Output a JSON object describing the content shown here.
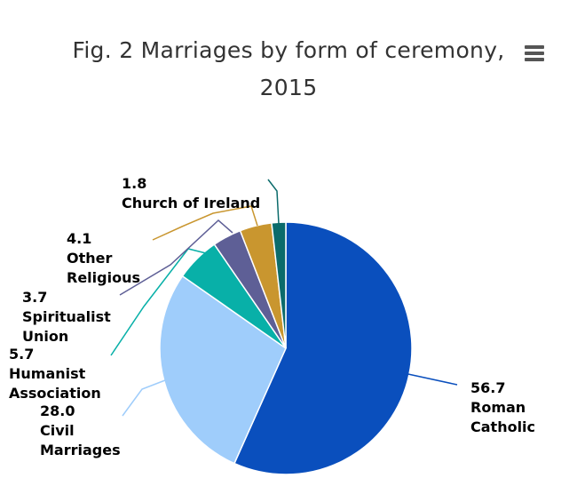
{
  "title": {
    "line1": "Fig. 2 Marriages by form of ceremony,",
    "line2": "2015"
  },
  "menu": {
    "icon": "hamburger-menu-icon"
  },
  "chart_data": {
    "type": "pie",
    "title": "Fig. 2 Marriages by form of ceremony, 2015",
    "slices": [
      {
        "name": "Roman Catholic",
        "label_lines": [
          "56.7",
          "Roman",
          "Catholic"
        ],
        "value": 56.7,
        "color": "#0a4fbd"
      },
      {
        "name": "Civil Marriages",
        "label_lines": [
          "28.0",
          "Civil",
          "Marriages"
        ],
        "value": 28.0,
        "color": "#9fcdfb"
      },
      {
        "name": "Humanist Association",
        "label_lines": [
          "5.7",
          "Humanist",
          "Association"
        ],
        "value": 5.7,
        "color": "#08b0a8"
      },
      {
        "name": "Spiritualist Union",
        "label_lines": [
          "3.7",
          "Spiritualist",
          "Union"
        ],
        "value": 3.7,
        "color": "#5e5f96"
      },
      {
        "name": "Other Religious",
        "label_lines": [
          "4.1",
          "Other",
          "Religious"
        ],
        "value": 4.1,
        "color": "#c9962f"
      },
      {
        "name": "Church of Ireland",
        "label_lines": [
          "1.8",
          "Church of Ireland"
        ],
        "value": 1.8,
        "color": "#0b6b6b"
      }
    ]
  }
}
